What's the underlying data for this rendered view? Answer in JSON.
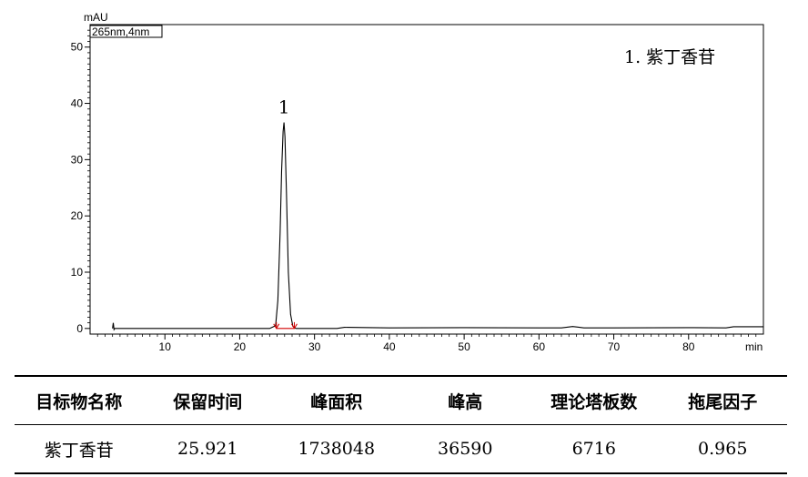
{
  "chart_data": {
    "type": "line",
    "xlabel": "min",
    "ylabel": "mAU",
    "channel_label": "265nm,4nm",
    "xlim": [
      0,
      90
    ],
    "ylim": [
      -1,
      54
    ],
    "x_ticks": [
      10,
      20,
      30,
      40,
      50,
      60,
      70,
      80
    ],
    "y_ticks": [
      0,
      10,
      20,
      30,
      40,
      50
    ],
    "x_tick_labels": [
      "10",
      "20",
      "30",
      "40",
      "50",
      "60",
      "70",
      "80"
    ],
    "y_tick_labels": [
      "0",
      "10",
      "20",
      "30",
      "40",
      "50"
    ],
    "legend_text": "1. 紫丁香苷",
    "peaks": [
      {
        "label": "1",
        "retention_time": 25.92,
        "height": 36.6,
        "start": 24.9,
        "end": 27.3
      }
    ],
    "series": [
      {
        "x": [
          3.0,
          3.1,
          3.2,
          3.3,
          10,
          20,
          24.0,
          24.8,
          25.1,
          25.4,
          25.6,
          25.8,
          25.92,
          26.05,
          26.25,
          26.5,
          26.8,
          27.1,
          27.5,
          30,
          33,
          34,
          40,
          50,
          60,
          63,
          64.5,
          66,
          70,
          80,
          85,
          86,
          90
        ],
        "y": [
          0,
          1.0,
          -0.2,
          0,
          0,
          0,
          0,
          0.5,
          5,
          17,
          28,
          35,
          36.6,
          34,
          24,
          10,
          2.5,
          0.4,
          0,
          0,
          0,
          0.2,
          0.1,
          0.15,
          0.1,
          0.1,
          0.35,
          0.1,
          0.1,
          0.15,
          0.1,
          0.3,
          0.3
        ]
      }
    ],
    "grid": false
  },
  "table": {
    "headers": [
      "目标物名称",
      "保留时间",
      "峰面积",
      "峰高",
      "理论塔板数",
      "拖尾因子"
    ],
    "rows": [
      [
        "紫丁香苷",
        "25.921",
        "1738048",
        "36590",
        "6716",
        "0.965"
      ]
    ]
  }
}
